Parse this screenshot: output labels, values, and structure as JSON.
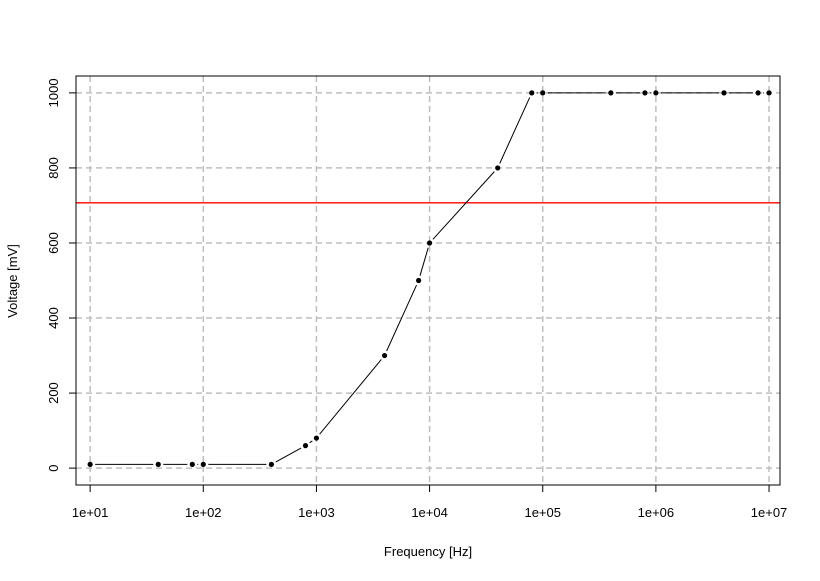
{
  "chart_data": {
    "type": "line",
    "title": "",
    "xlabel": "Frequency [Hz]",
    "ylabel": "Voltage [mV]",
    "x_scale": "log",
    "xlim": [
      7.5,
      12500000
    ],
    "ylim": [
      -45,
      1045
    ],
    "grid": true,
    "x_ticks": [
      {
        "value": 10,
        "label": "1e+01"
      },
      {
        "value": 100,
        "label": "1e+02"
      },
      {
        "value": 1000,
        "label": "1e+03"
      },
      {
        "value": 10000,
        "label": "1e+04"
      },
      {
        "value": 100000,
        "label": "1e+05"
      },
      {
        "value": 1000000,
        "label": "1e+06"
      },
      {
        "value": 10000000,
        "label": "1e+07"
      }
    ],
    "y_ticks": [
      {
        "value": 0,
        "label": "0"
      },
      {
        "value": 200,
        "label": "200"
      },
      {
        "value": 400,
        "label": "400"
      },
      {
        "value": 600,
        "label": "600"
      },
      {
        "value": 800,
        "label": "800"
      },
      {
        "value": 1000,
        "label": "1000"
      }
    ],
    "series": [
      {
        "color": "#000000",
        "x": [
          10,
          40,
          80,
          100,
          400,
          800,
          1000,
          4000,
          8000,
          10000,
          40000,
          80000,
          100000,
          400000,
          800000,
          1000000,
          4000000,
          8000000,
          10000000
        ],
        "y": [
          10,
          10,
          10,
          10,
          10,
          60,
          80,
          300,
          500,
          600,
          800,
          1000,
          1000,
          1000,
          1000,
          1000,
          1000,
          1000,
          1000
        ]
      }
    ],
    "reference_line": {
      "y": 707,
      "color": "#ff0000"
    },
    "grid_color": "#bebebe"
  }
}
